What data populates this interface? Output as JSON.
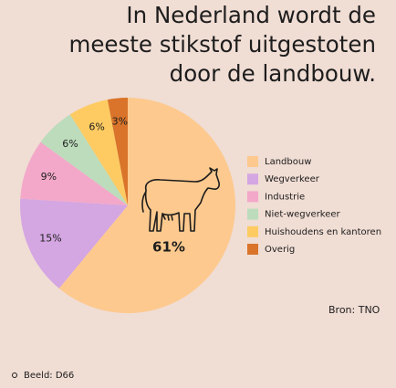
{
  "title_lines": [
    "In Nederland wordt de",
    "meeste stikstof uitgestoten",
    "door de landbouw."
  ],
  "chart_data": {
    "type": "pie",
    "categories": [
      "Landbouw",
      "Wegverkeer",
      "Industrie",
      "Niet-wegverkeer",
      "Huishoudens en kantoren",
      "Overig"
    ],
    "values": [
      61,
      15,
      9,
      6,
      6,
      3
    ],
    "value_labels": [
      "61%",
      "15%",
      "9%",
      "6%",
      "6%",
      "3%"
    ],
    "colors": [
      "#fdc98e",
      "#d4a6e2",
      "#f3a8c9",
      "#bcdcbc",
      "#fdcb62",
      "#d9742a"
    ],
    "legend": "right"
  },
  "source": "Bron: TNO",
  "credit": "Beeld: D66"
}
